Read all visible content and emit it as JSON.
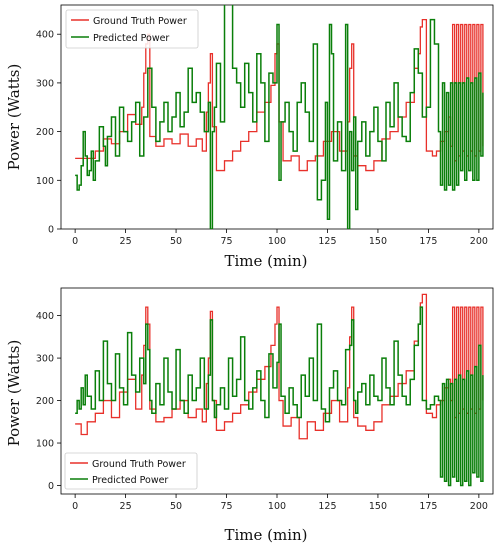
{
  "chart_data": [
    {
      "type": "line",
      "xlabel": "Time (min)",
      "ylabel": "Power (Watts)",
      "xlim": [
        -7,
        207
      ],
      "ylim": [
        0,
        460
      ],
      "x_ticks": [
        0,
        25,
        50,
        75,
        100,
        125,
        150,
        175,
        200
      ],
      "y_ticks": [
        0,
        100,
        200,
        300,
        400
      ],
      "legend_position": "top-left",
      "series": [
        {
          "name": "Ground Truth Power",
          "color": "#e8302a",
          "x": [
            0,
            3,
            6,
            10,
            14,
            18,
            22,
            26,
            30,
            33,
            34,
            35,
            36,
            37,
            40,
            44,
            48,
            52,
            56,
            60,
            63,
            65,
            66,
            67,
            68,
            70,
            74,
            78,
            82,
            86,
            90,
            94,
            97,
            99,
            100,
            101,
            103,
            107,
            111,
            115,
            119,
            123,
            127,
            131,
            135,
            136,
            137,
            138,
            140,
            144,
            148,
            152,
            156,
            160,
            164,
            168,
            170,
            171,
            172,
            174,
            177,
            179,
            181,
            183,
            185,
            186,
            187,
            188,
            189,
            190,
            191,
            192,
            193,
            194,
            195,
            196,
            197,
            198,
            199,
            200,
            201,
            202
          ],
          "y": [
            145,
            145,
            145,
            160,
            185,
            175,
            200,
            235,
            215,
            250,
            320,
            380,
            400,
            190,
            170,
            185,
            175,
            195,
            170,
            185,
            160,
            240,
            300,
            360,
            210,
            120,
            140,
            160,
            180,
            200,
            240,
            260,
            295,
            360,
            380,
            220,
            140,
            150,
            120,
            140,
            150,
            180,
            200,
            160,
            220,
            330,
            380,
            150,
            130,
            120,
            140,
            185,
            200,
            230,
            260,
            330,
            360,
            415,
            430,
            160,
            150,
            160,
            180,
            200,
            230,
            170,
            420,
            140,
            420,
            150,
            420,
            160,
            420,
            150,
            420,
            160,
            420,
            150,
            420,
            160,
            420,
            170
          ]
        },
        {
          "name": "Predicted Power",
          "color": "#0a7f0a",
          "x": [
            0,
            1,
            2,
            3,
            4,
            5,
            6,
            7,
            8,
            9,
            10,
            12,
            14,
            15,
            16,
            18,
            20,
            22,
            24,
            26,
            28,
            30,
            32,
            34,
            36,
            38,
            40,
            42,
            44,
            46,
            48,
            50,
            52,
            54,
            56,
            58,
            60,
            62,
            64,
            66,
            67,
            68,
            69,
            70,
            72,
            74,
            76,
            78,
            80,
            82,
            84,
            86,
            88,
            90,
            92,
            94,
            96,
            98,
            100,
            101,
            102,
            104,
            106,
            108,
            110,
            112,
            114,
            116,
            118,
            120,
            122,
            124,
            125,
            126,
            127,
            128,
            130,
            132,
            134,
            135,
            136,
            137,
            138,
            139,
            140,
            142,
            144,
            146,
            148,
            150,
            152,
            154,
            156,
            158,
            160,
            162,
            164,
            166,
            168,
            170,
            172,
            174,
            176,
            178,
            180,
            181,
            182,
            183,
            184,
            185,
            186,
            187,
            188,
            189,
            190,
            191,
            192,
            193,
            194,
            195,
            196,
            197,
            198,
            199,
            200,
            201,
            202
          ],
          "y": [
            110,
            80,
            90,
            130,
            200,
            150,
            110,
            120,
            160,
            100,
            140,
            210,
            170,
            130,
            190,
            230,
            150,
            250,
            200,
            180,
            220,
            260,
            150,
            230,
            330,
            250,
            180,
            220,
            260,
            200,
            230,
            280,
            210,
            240,
            330,
            260,
            280,
            240,
            200,
            260,
            0,
            200,
            250,
            340,
            220,
            470,
            470,
            330,
            300,
            250,
            340,
            280,
            220,
            360,
            300,
            180,
            320,
            300,
            420,
            100,
            220,
            260,
            200,
            160,
            260,
            300,
            240,
            180,
            380,
            60,
            100,
            260,
            20,
            420,
            360,
            140,
            220,
            120,
            420,
            0,
            200,
            120,
            230,
            40,
            180,
            220,
            150,
            200,
            250,
            180,
            140,
            260,
            210,
            300,
            230,
            190,
            180,
            280,
            370,
            320,
            230,
            250,
            430,
            380,
            200,
            90,
            300,
            80,
            280,
            90,
            300,
            80,
            300,
            90,
            300,
            120,
            300,
            100,
            310,
            120,
            300,
            100,
            310,
            100,
            320,
            150,
            280
          ]
        }
      ]
    },
    {
      "type": "line",
      "xlabel": "Time (min)",
      "ylabel": "Power (Watts)",
      "xlim": [
        -7,
        207
      ],
      "ylim": [
        -20,
        465
      ],
      "x_ticks": [
        0,
        25,
        50,
        75,
        100,
        125,
        150,
        175,
        200
      ],
      "y_ticks": [
        0,
        100,
        200,
        300,
        400
      ],
      "legend_position": "bottom-left",
      "series": [
        {
          "name": "Ground Truth Power",
          "color": "#e8302a",
          "x": [
            0,
            3,
            6,
            10,
            14,
            18,
            22,
            26,
            30,
            33,
            34,
            35,
            36,
            37,
            40,
            44,
            48,
            52,
            56,
            60,
            63,
            65,
            66,
            67,
            68,
            70,
            74,
            78,
            82,
            86,
            90,
            94,
            97,
            99,
            100,
            101,
            103,
            107,
            111,
            115,
            119,
            123,
            127,
            131,
            135,
            136,
            137,
            138,
            140,
            144,
            148,
            152,
            156,
            160,
            164,
            168,
            170,
            171,
            172,
            174,
            177,
            179,
            181,
            183,
            185,
            186,
            187,
            188,
            189,
            190,
            191,
            192,
            193,
            194,
            195,
            196,
            197,
            198,
            199,
            200,
            201,
            202
          ],
          "y": [
            145,
            120,
            150,
            170,
            200,
            160,
            220,
            250,
            180,
            260,
            330,
            420,
            380,
            180,
            150,
            160,
            180,
            200,
            160,
            180,
            150,
            240,
            300,
            410,
            200,
            130,
            150,
            170,
            190,
            220,
            250,
            280,
            330,
            380,
            420,
            200,
            140,
            160,
            110,
            150,
            130,
            170,
            200,
            150,
            230,
            350,
            420,
            160,
            140,
            130,
            150,
            190,
            210,
            240,
            270,
            340,
            380,
            430,
            450,
            170,
            160,
            190,
            200,
            230,
            250,
            200,
            420,
            160,
            420,
            170,
            420,
            180,
            420,
            170,
            420,
            180,
            420,
            170,
            420,
            180,
            420,
            200
          ]
        },
        {
          "name": "Predicted Power",
          "color": "#0a7f0a",
          "x": [
            0,
            1,
            2,
            3,
            4,
            5,
            6,
            8,
            10,
            12,
            14,
            16,
            18,
            20,
            22,
            24,
            26,
            28,
            30,
            32,
            34,
            35,
            36,
            37,
            38,
            40,
            42,
            44,
            46,
            48,
            50,
            52,
            54,
            56,
            58,
            60,
            62,
            64,
            66,
            67,
            68,
            69,
            70,
            72,
            74,
            76,
            78,
            80,
            82,
            84,
            86,
            88,
            90,
            92,
            94,
            96,
            98,
            100,
            101,
            102,
            104,
            106,
            108,
            110,
            112,
            114,
            116,
            118,
            120,
            122,
            124,
            126,
            128,
            130,
            132,
            134,
            136,
            137,
            138,
            139,
            140,
            142,
            144,
            146,
            148,
            150,
            152,
            154,
            156,
            158,
            160,
            162,
            164,
            166,
            168,
            170,
            171,
            172,
            174,
            176,
            178,
            180,
            181,
            182,
            183,
            184,
            185,
            186,
            187,
            188,
            189,
            190,
            191,
            192,
            193,
            194,
            195,
            196,
            197,
            198,
            199,
            200,
            201,
            202
          ],
          "y": [
            170,
            200,
            180,
            230,
            190,
            260,
            210,
            180,
            270,
            200,
            340,
            240,
            200,
            310,
            230,
            190,
            360,
            260,
            220,
            300,
            240,
            380,
            320,
            200,
            170,
            240,
            190,
            300,
            220,
            180,
            320,
            200,
            170,
            260,
            200,
            230,
            300,
            180,
            260,
            390,
            200,
            160,
            190,
            230,
            180,
            300,
            210,
            250,
            350,
            200,
            180,
            230,
            270,
            200,
            160,
            310,
            230,
            290,
            380,
            210,
            170,
            230,
            190,
            160,
            260,
            210,
            300,
            200,
            380,
            180,
            150,
            230,
            270,
            200,
            190,
            320,
            330,
            390,
            200,
            170,
            220,
            240,
            190,
            260,
            210,
            200,
            300,
            230,
            190,
            340,
            260,
            210,
            190,
            250,
            330,
            380,
            420,
            200,
            180,
            190,
            210,
            200,
            20,
            240,
            10,
            250,
            0,
            240,
            20,
            250,
            10,
            260,
            0,
            250,
            10,
            270,
            0,
            260,
            30,
            280,
            20,
            330,
            10,
            260
          ]
        }
      ]
    }
  ]
}
